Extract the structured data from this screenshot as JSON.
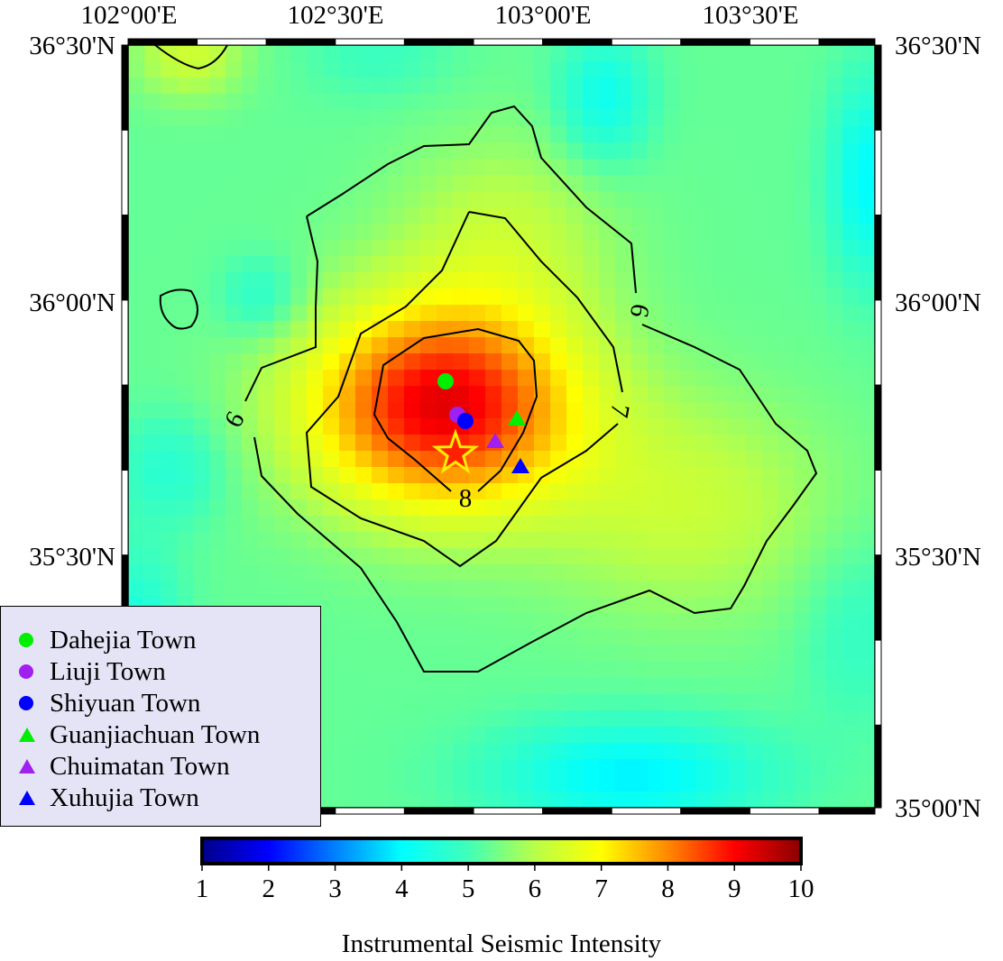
{
  "map": {
    "lon_labels": [
      "102°00'E",
      "102°30'E",
      "103°00'E",
      "103°30'E"
    ],
    "lat_labels": [
      "36°30'N",
      "36°00'N",
      "35°30'N",
      "35°00'N"
    ],
    "contour_labels": [
      "6",
      "6",
      "7",
      "8"
    ],
    "epicenter_icon": "star-icon"
  },
  "legend": {
    "items": [
      {
        "label": "Dahejia Town",
        "shape": "circle",
        "color": "#00ee00"
      },
      {
        "label": "Liuji Town",
        "shape": "circle",
        "color": "#a020f0"
      },
      {
        "label": "Shiyuan Town",
        "shape": "circle",
        "color": "#0000ff"
      },
      {
        "label": "Guanjiachuan Town",
        "shape": "triangle",
        "color": "#00ee00"
      },
      {
        "label": "Chuimatan Town",
        "shape": "triangle",
        "color": "#a020f0"
      },
      {
        "label": "Xuhujia Town",
        "shape": "triangle",
        "color": "#0000ff"
      }
    ]
  },
  "colorbar": {
    "title": "Instrumental Seismic Intensity",
    "min": 1,
    "max": 10,
    "ticks": [
      "1",
      "2",
      "3",
      "4",
      "5",
      "6",
      "7",
      "8",
      "9",
      "10"
    ],
    "stops": [
      "#00008b",
      "#0000ff",
      "#0080ff",
      "#00ffff",
      "#40ffb8",
      "#b8ff48",
      "#ffff00",
      "#ff8800",
      "#ff0000",
      "#8b0000"
    ]
  }
}
